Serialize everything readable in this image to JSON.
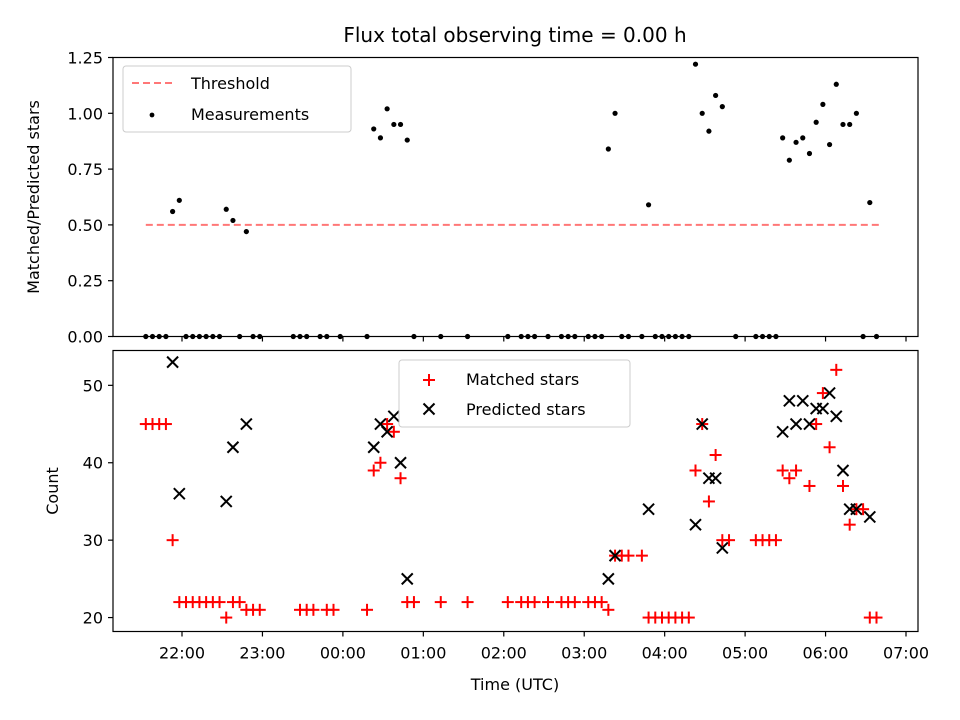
{
  "chart_data": [
    {
      "type": "scatter",
      "title": "Flux total observing time = 0.00 h",
      "xlabel": "",
      "ylabel": "Matched/Predicted stars",
      "ylim": [
        0,
        1.25
      ],
      "yticks": [
        "0.00",
        "0.25",
        "0.50",
        "0.75",
        "1.00",
        "1.25"
      ],
      "threshold": {
        "name": "Threshold",
        "value": 0.5,
        "x_start": "21:33",
        "x_end": "06:41",
        "color": "#ff7777"
      },
      "legend": {
        "placement": "top-left"
      },
      "series": [
        {
          "name": "Measurements",
          "color": "#000000",
          "marker": "dot",
          "points": [
            [
              "21:33",
              0
            ],
            [
              "21:38",
              0
            ],
            [
              "21:43",
              0
            ],
            [
              "21:48",
              0
            ],
            [
              "21:53",
              0.56
            ],
            [
              "21:58",
              0.61
            ],
            [
              "22:03",
              0
            ],
            [
              "22:08",
              0
            ],
            [
              "22:13",
              0
            ],
            [
              "22:18",
              0
            ],
            [
              "22:23",
              0
            ],
            [
              "22:28",
              0
            ],
            [
              "22:33",
              0.57
            ],
            [
              "22:38",
              0.52
            ],
            [
              "22:43",
              0
            ],
            [
              "22:48",
              0.47
            ],
            [
              "22:53",
              0
            ],
            [
              "22:58",
              0
            ],
            [
              "23:23",
              0
            ],
            [
              "23:28",
              0
            ],
            [
              "23:33",
              0
            ],
            [
              "23:43",
              0
            ],
            [
              "23:48",
              0
            ],
            [
              "23:58",
              0
            ],
            [
              "00:18",
              0
            ],
            [
              "00:23",
              0.93
            ],
            [
              "00:28",
              0.89
            ],
            [
              "00:33",
              1.02
            ],
            [
              "00:38",
              0.95
            ],
            [
              "00:43",
              0.95
            ],
            [
              "00:48",
              0.88
            ],
            [
              "00:53",
              0
            ],
            [
              "01:13",
              0
            ],
            [
              "01:33",
              0
            ],
            [
              "02:03",
              0
            ],
            [
              "02:13",
              0
            ],
            [
              "02:18",
              0
            ],
            [
              "02:23",
              0
            ],
            [
              "02:33",
              0
            ],
            [
              "02:43",
              0
            ],
            [
              "02:48",
              0
            ],
            [
              "02:53",
              0
            ],
            [
              "03:03",
              0
            ],
            [
              "03:08",
              0
            ],
            [
              "03:13",
              0
            ],
            [
              "03:18",
              0.84
            ],
            [
              "03:23",
              1.0
            ],
            [
              "03:28",
              0
            ],
            [
              "03:33",
              0
            ],
            [
              "03:43",
              0
            ],
            [
              "03:48",
              0.59
            ],
            [
              "03:53",
              0
            ],
            [
              "03:58",
              0
            ],
            [
              "04:03",
              0
            ],
            [
              "04:08",
              0
            ],
            [
              "04:13",
              0
            ],
            [
              "04:18",
              0
            ],
            [
              "04:23",
              1.22
            ],
            [
              "04:28",
              1.0
            ],
            [
              "04:33",
              0.92
            ],
            [
              "04:38",
              1.08
            ],
            [
              "04:43",
              1.03
            ],
            [
              "04:53",
              0
            ],
            [
              "05:08",
              0
            ],
            [
              "05:13",
              0
            ],
            [
              "05:18",
              0
            ],
            [
              "05:23",
              0
            ],
            [
              "05:28",
              0.89
            ],
            [
              "05:33",
              0.79
            ],
            [
              "05:38",
              0.87
            ],
            [
              "05:43",
              0.89
            ],
            [
              "05:48",
              0.82
            ],
            [
              "05:53",
              0.96
            ],
            [
              "05:58",
              1.04
            ],
            [
              "06:03",
              0.86
            ],
            [
              "06:08",
              1.13
            ],
            [
              "06:13",
              0.95
            ],
            [
              "06:18",
              0.95
            ],
            [
              "06:23",
              1.0
            ],
            [
              "06:28",
              0
            ],
            [
              "06:33",
              0.6
            ],
            [
              "06:38",
              0
            ]
          ]
        }
      ]
    },
    {
      "type": "scatter",
      "title": "",
      "xlabel": "Time (UTC)",
      "ylabel": "Count",
      "ylim": [
        18.2,
        54.5
      ],
      "yticks": [
        "20",
        "30",
        "40",
        "50"
      ],
      "xticks": [
        "22:00",
        "23:00",
        "00:00",
        "01:00",
        "02:00",
        "03:00",
        "04:00",
        "05:00",
        "06:00",
        "07:00"
      ],
      "legend": {
        "placement": "top-center"
      },
      "series": [
        {
          "name": "Matched stars",
          "color": "#ff0000",
          "marker": "plus",
          "points": [
            [
              "21:33",
              45
            ],
            [
              "21:38",
              45
            ],
            [
              "21:43",
              45
            ],
            [
              "21:48",
              45
            ],
            [
              "21:53",
              30
            ],
            [
              "21:58",
              22
            ],
            [
              "22:03",
              22
            ],
            [
              "22:08",
              22
            ],
            [
              "22:13",
              22
            ],
            [
              "22:18",
              22
            ],
            [
              "22:23",
              22
            ],
            [
              "22:28",
              22
            ],
            [
              "22:33",
              20
            ],
            [
              "22:38",
              22
            ],
            [
              "22:43",
              22
            ],
            [
              "22:48",
              21
            ],
            [
              "22:53",
              21
            ],
            [
              "22:58",
              21
            ],
            [
              "23:28",
              21
            ],
            [
              "23:33",
              21
            ],
            [
              "23:38",
              21
            ],
            [
              "23:48",
              21
            ],
            [
              "23:53",
              21
            ],
            [
              "00:18",
              21
            ],
            [
              "00:23",
              39
            ],
            [
              "00:28",
              40
            ],
            [
              "00:33",
              45
            ],
            [
              "00:38",
              44
            ],
            [
              "00:43",
              38
            ],
            [
              "00:48",
              22
            ],
            [
              "00:53",
              22
            ],
            [
              "01:13",
              22
            ],
            [
              "01:33",
              22
            ],
            [
              "02:03",
              22
            ],
            [
              "02:13",
              22
            ],
            [
              "02:18",
              22
            ],
            [
              "02:23",
              22
            ],
            [
              "02:33",
              22
            ],
            [
              "02:43",
              22
            ],
            [
              "02:48",
              22
            ],
            [
              "02:53",
              22
            ],
            [
              "03:03",
              22
            ],
            [
              "03:08",
              22
            ],
            [
              "03:13",
              22
            ],
            [
              "03:18",
              21
            ],
            [
              "03:23",
              28
            ],
            [
              "03:28",
              28
            ],
            [
              "03:33",
              28
            ],
            [
              "03:43",
              28
            ],
            [
              "03:48",
              20
            ],
            [
              "03:53",
              20
            ],
            [
              "03:58",
              20
            ],
            [
              "04:03",
              20
            ],
            [
              "04:08",
              20
            ],
            [
              "04:13",
              20
            ],
            [
              "04:18",
              20
            ],
            [
              "04:23",
              39
            ],
            [
              "04:28",
              45
            ],
            [
              "04:33",
              35
            ],
            [
              "04:38",
              41
            ],
            [
              "04:43",
              30
            ],
            [
              "04:48",
              30
            ],
            [
              "05:08",
              30
            ],
            [
              "05:13",
              30
            ],
            [
              "05:18",
              30
            ],
            [
              "05:23",
              30
            ],
            [
              "05:28",
              39
            ],
            [
              "05:33",
              38
            ],
            [
              "05:38",
              39
            ],
            [
              "05:48",
              37
            ],
            [
              "05:53",
              45
            ],
            [
              "05:58",
              49
            ],
            [
              "06:03",
              42
            ],
            [
              "06:08",
              52
            ],
            [
              "06:13",
              37
            ],
            [
              "06:18",
              32
            ],
            [
              "06:23",
              34
            ],
            [
              "06:28",
              34
            ],
            [
              "06:33",
              20
            ],
            [
              "06:38",
              20
            ]
          ]
        },
        {
          "name": "Predicted stars",
          "color": "#000000",
          "marker": "x",
          "points": [
            [
              "21:53",
              53
            ],
            [
              "21:58",
              36
            ],
            [
              "22:33",
              35
            ],
            [
              "22:38",
              42
            ],
            [
              "22:48",
              45
            ],
            [
              "00:23",
              42
            ],
            [
              "00:28",
              45
            ],
            [
              "00:33",
              44
            ],
            [
              "00:38",
              46
            ],
            [
              "00:43",
              40
            ],
            [
              "00:48",
              25
            ],
            [
              "03:18",
              25
            ],
            [
              "03:23",
              28
            ],
            [
              "03:48",
              34
            ],
            [
              "04:23",
              32
            ],
            [
              "04:28",
              45
            ],
            [
              "04:33",
              38
            ],
            [
              "04:38",
              38
            ],
            [
              "04:43",
              29
            ],
            [
              "05:28",
              44
            ],
            [
              "05:33",
              48
            ],
            [
              "05:38",
              45
            ],
            [
              "05:43",
              48
            ],
            [
              "05:48",
              45
            ],
            [
              "05:53",
              47
            ],
            [
              "05:58",
              47
            ],
            [
              "06:03",
              49
            ],
            [
              "06:08",
              46
            ],
            [
              "06:13",
              39
            ],
            [
              "06:18",
              34
            ],
            [
              "06:23",
              34
            ],
            [
              "06:33",
              33
            ]
          ]
        }
      ]
    }
  ]
}
